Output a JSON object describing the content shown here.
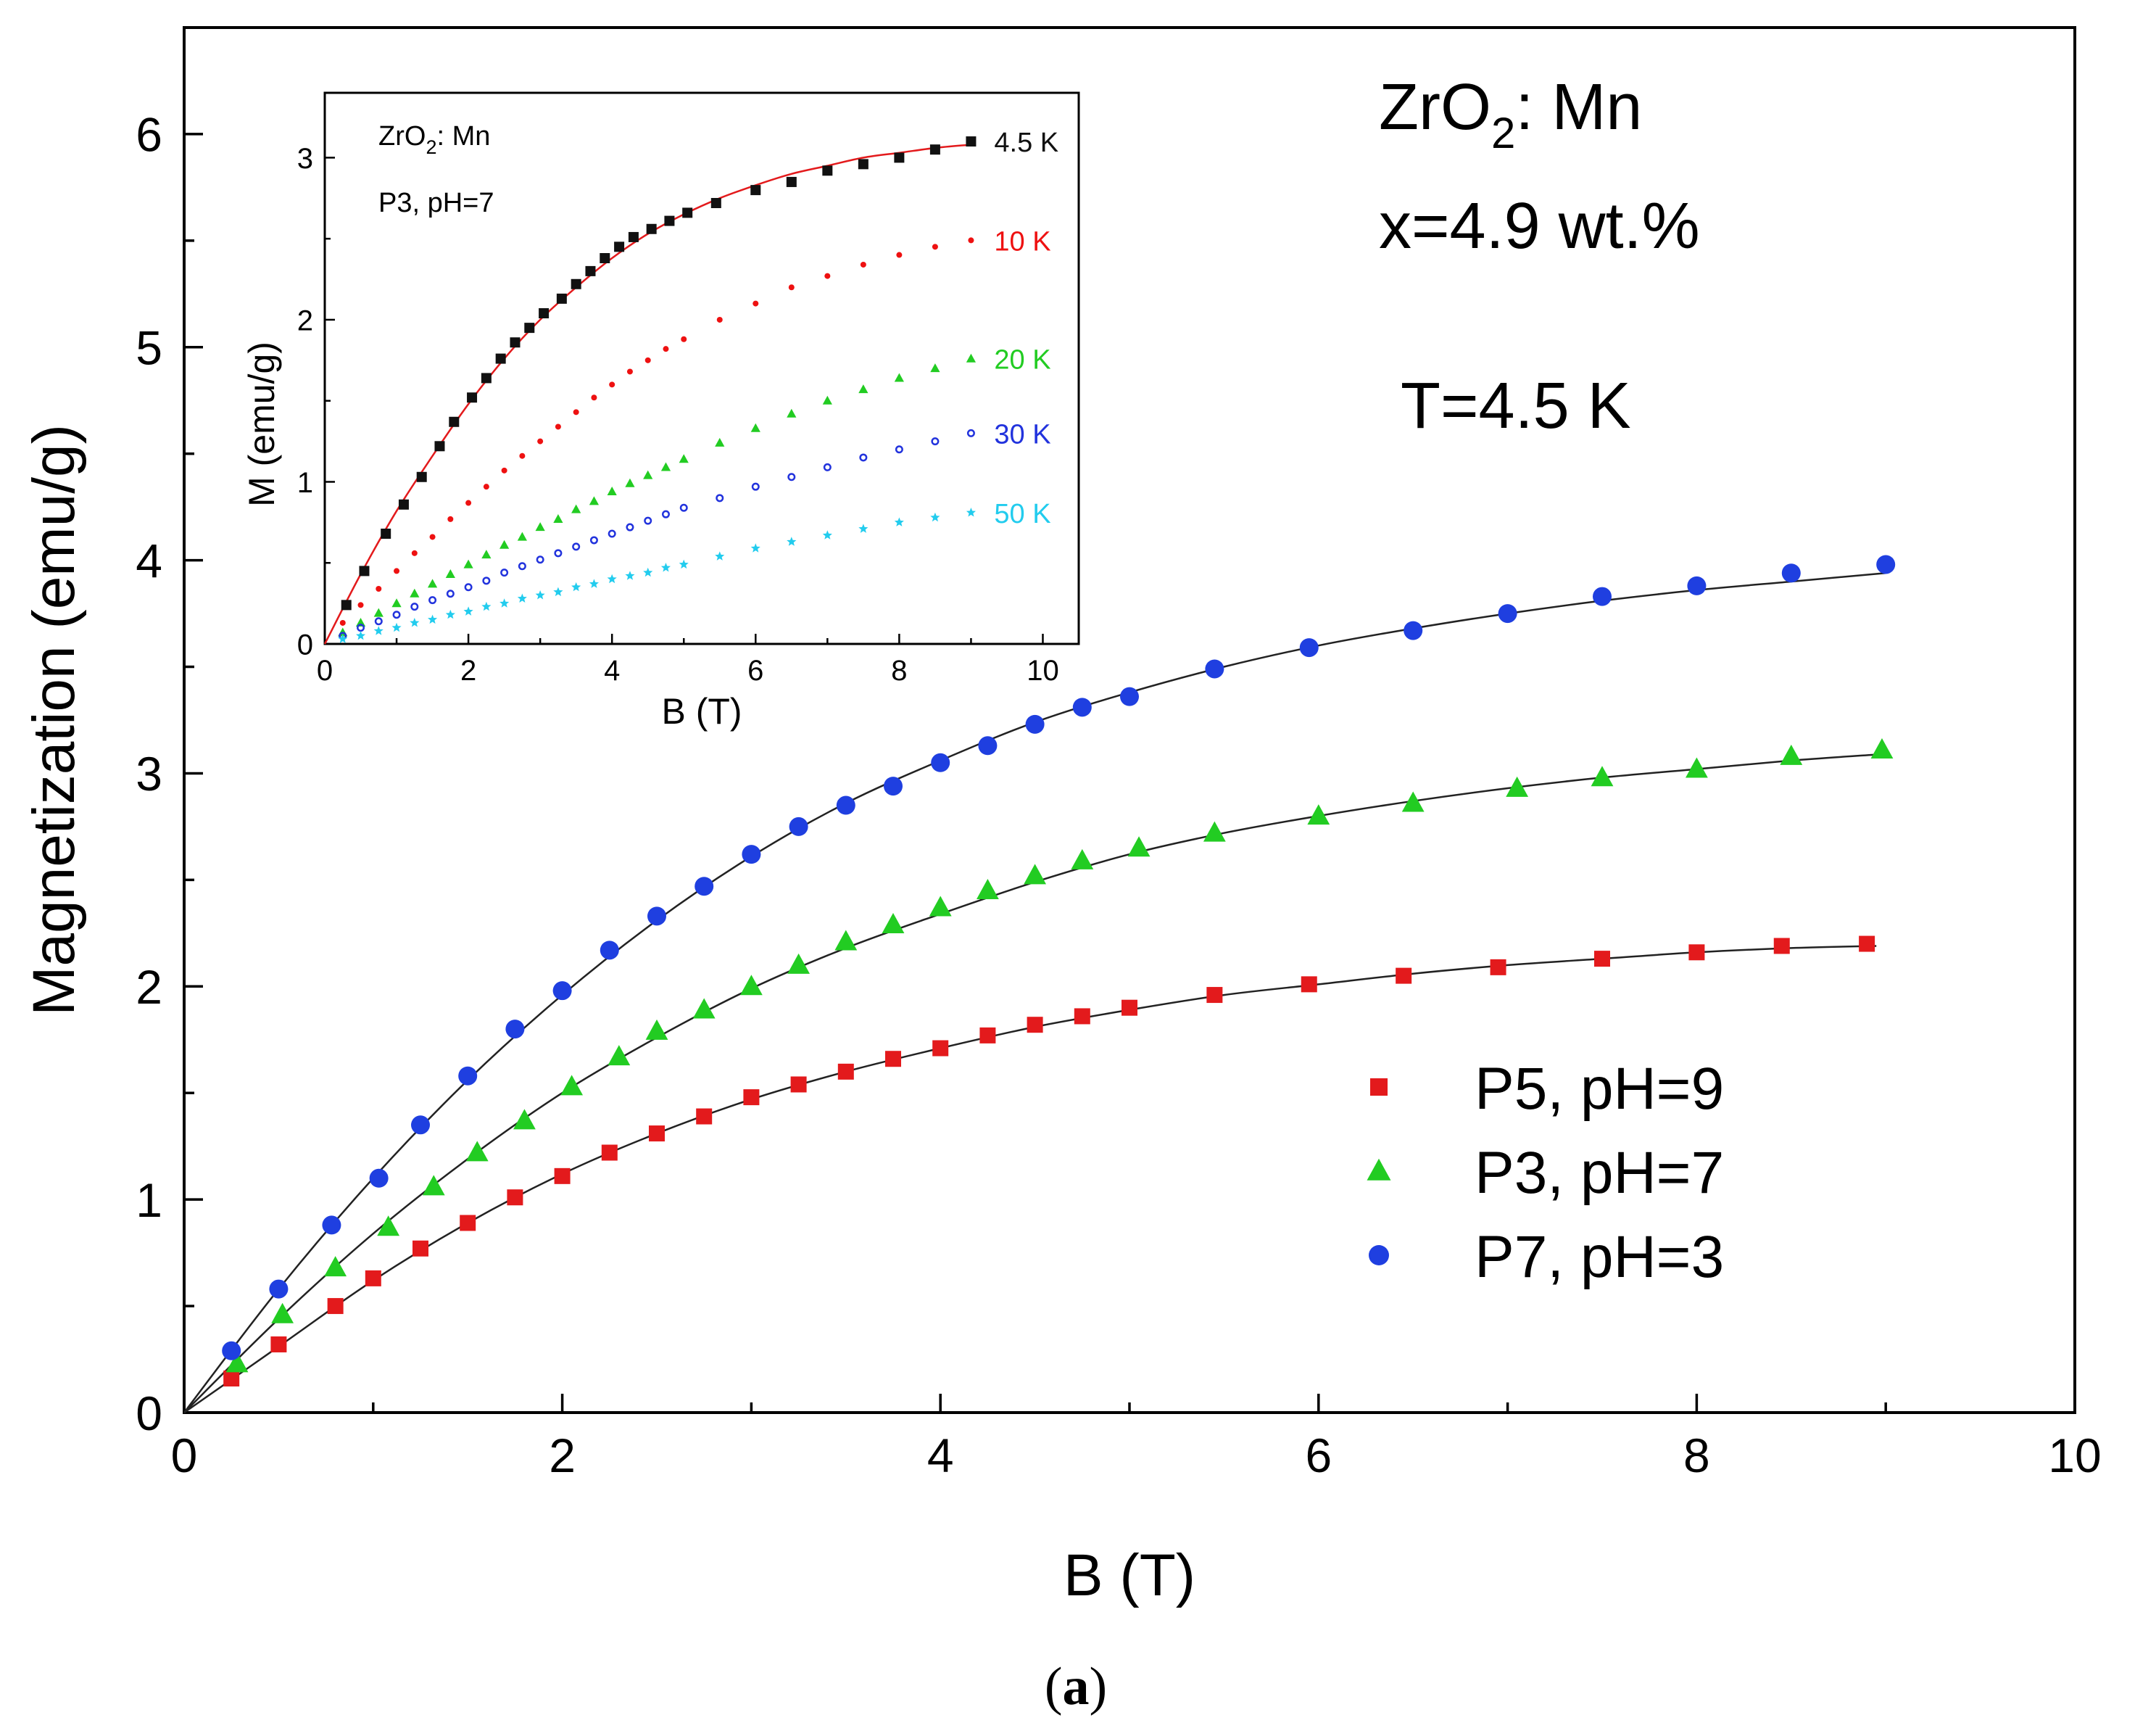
{
  "caption": {
    "open": "(",
    "letter": "a",
    "close": ")"
  },
  "chart_data": [
    {
      "type": "scatter",
      "xlabel": "B (T)",
      "ylabel": "Magnetization (emu/g)",
      "xlim": [
        0,
        10
      ],
      "ylim": [
        0,
        6.5
      ],
      "x_ticks": [
        0,
        2,
        4,
        6,
        8,
        10
      ],
      "y_ticks": [
        0,
        1,
        2,
        3,
        4,
        5,
        6
      ],
      "grid": false,
      "legend_position": "lower-right",
      "annotations": {
        "material": "ZrO",
        "material_sub": "2",
        "material_rest": ": Mn",
        "concentration": "x=4.9 wt.%",
        "temperature": "T=4.5 K"
      },
      "series": [
        {
          "name": "P5, pH=9",
          "color": "#e31a1c",
          "marker": "square",
          "x": [
            0.25,
            0.5,
            0.8,
            1.0,
            1.25,
            1.5,
            1.75,
            2.0,
            2.25,
            2.5,
            2.75,
            3.0,
            3.25,
            3.5,
            3.75,
            4.0,
            4.25,
            4.5,
            4.75,
            5.0,
            5.45,
            5.95,
            6.45,
            6.95,
            7.5,
            8.0,
            8.45,
            8.9
          ],
          "y": [
            0.16,
            0.32,
            0.5,
            0.63,
            0.77,
            0.89,
            1.01,
            1.11,
            1.22,
            1.31,
            1.39,
            1.48,
            1.54,
            1.6,
            1.66,
            1.71,
            1.77,
            1.82,
            1.86,
            1.9,
            1.96,
            2.01,
            2.05,
            2.09,
            2.13,
            2.16,
            2.19,
            2.2
          ],
          "fit": [
            [
              0,
              0
            ],
            [
              0.5,
              0.31
            ],
            [
              1.0,
              0.62
            ],
            [
              1.5,
              0.89
            ],
            [
              2.0,
              1.12
            ],
            [
              2.5,
              1.31
            ],
            [
              3.0,
              1.47
            ],
            [
              3.5,
              1.6
            ],
            [
              4.0,
              1.71
            ],
            [
              4.5,
              1.81
            ],
            [
              5.0,
              1.89
            ],
            [
              5.5,
              1.96
            ],
            [
              6.0,
              2.01
            ],
            [
              6.5,
              2.06
            ],
            [
              7.0,
              2.1
            ],
            [
              7.5,
              2.13
            ],
            [
              8.0,
              2.16
            ],
            [
              8.5,
              2.18
            ],
            [
              8.95,
              2.19
            ]
          ]
        },
        {
          "name": "P3, pH=7",
          "color": "#22cc22",
          "marker": "triangle",
          "x": [
            0.28,
            0.52,
            0.8,
            1.08,
            1.32,
            1.55,
            1.8,
            2.05,
            2.3,
            2.5,
            2.75,
            3.0,
            3.25,
            3.5,
            3.75,
            4.0,
            4.25,
            4.5,
            4.75,
            5.05,
            5.45,
            6.0,
            6.5,
            7.05,
            7.5,
            8.0,
            8.5,
            8.98
          ],
          "y": [
            0.23,
            0.46,
            0.68,
            0.87,
            1.06,
            1.22,
            1.37,
            1.53,
            1.67,
            1.79,
            1.89,
            2.0,
            2.1,
            2.21,
            2.29,
            2.37,
            2.45,
            2.52,
            2.59,
            2.65,
            2.72,
            2.8,
            2.86,
            2.93,
            2.98,
            3.02,
            3.08,
            3.11
          ],
          "fit": [
            [
              0,
              0
            ],
            [
              0.5,
              0.44
            ],
            [
              1.0,
              0.84
            ],
            [
              1.5,
              1.19
            ],
            [
              2.0,
              1.5
            ],
            [
              2.5,
              1.76
            ],
            [
              3.0,
              1.99
            ],
            [
              3.5,
              2.18
            ],
            [
              4.0,
              2.34
            ],
            [
              4.5,
              2.49
            ],
            [
              5.0,
              2.62
            ],
            [
              5.5,
              2.72
            ],
            [
              6.0,
              2.8
            ],
            [
              6.5,
              2.87
            ],
            [
              7.0,
              2.93
            ],
            [
              7.5,
              2.98
            ],
            [
              8.0,
              3.02
            ],
            [
              8.5,
              3.06
            ],
            [
              8.98,
              3.09
            ]
          ]
        },
        {
          "name": "P7, pH=3",
          "color": "#1f3fe0",
          "marker": "circle",
          "x": [
            0.25,
            0.5,
            0.78,
            1.03,
            1.25,
            1.5,
            1.75,
            2.0,
            2.25,
            2.5,
            2.75,
            3.0,
            3.25,
            3.5,
            3.75,
            4.0,
            4.25,
            4.5,
            4.75,
            5.0,
            5.45,
            5.95,
            6.5,
            7.0,
            7.5,
            8.0,
            8.5,
            9.0
          ],
          "y": [
            0.29,
            0.58,
            0.88,
            1.1,
            1.35,
            1.58,
            1.8,
            1.98,
            2.17,
            2.33,
            2.47,
            2.62,
            2.75,
            2.85,
            2.94,
            3.05,
            3.13,
            3.23,
            3.31,
            3.36,
            3.49,
            3.59,
            3.67,
            3.75,
            3.83,
            3.88,
            3.94,
            3.98
          ],
          "fit": [
            [
              0,
              0
            ],
            [
              0.5,
              0.58
            ],
            [
              1.0,
              1.1
            ],
            [
              1.5,
              1.56
            ],
            [
              2.0,
              1.96
            ],
            [
              2.5,
              2.31
            ],
            [
              3.0,
              2.61
            ],
            [
              3.5,
              2.86
            ],
            [
              4.0,
              3.06
            ],
            [
              4.5,
              3.24
            ],
            [
              5.0,
              3.38
            ],
            [
              5.5,
              3.5
            ],
            [
              6.0,
              3.6
            ],
            [
              6.5,
              3.68
            ],
            [
              7.0,
              3.75
            ],
            [
              7.5,
              3.81
            ],
            [
              8.0,
              3.86
            ],
            [
              8.5,
              3.9
            ],
            [
              9.0,
              3.94
            ]
          ]
        }
      ]
    },
    {
      "type": "scatter",
      "xlabel": "B (T)",
      "ylabel": "M (emu/g)",
      "xlim": [
        0,
        10.5
      ],
      "ylim": [
        0,
        3.4
      ],
      "x_ticks": [
        0,
        2,
        4,
        6,
        8,
        10
      ],
      "y_ticks": [
        0,
        1,
        2,
        3
      ],
      "grid": false,
      "annotations": {
        "material": "ZrO",
        "material_sub": "2",
        "material_rest": ": Mn",
        "sample": "P3, pH=7"
      },
      "series": [
        {
          "name": "4.5 K",
          "color": "#111111",
          "marker": "square",
          "x": [
            0.3,
            0.55,
            0.85,
            1.1,
            1.35,
            1.6,
            1.8,
            2.05,
            2.25,
            2.45,
            2.65,
            2.85,
            3.05,
            3.3,
            3.5,
            3.7,
            3.9,
            4.1,
            4.3,
            4.55,
            4.8,
            5.05,
            5.45,
            6.0,
            6.5,
            7.0,
            7.5,
            8.0,
            8.5,
            9.0
          ],
          "y": [
            0.24,
            0.45,
            0.68,
            0.86,
            1.03,
            1.22,
            1.37,
            1.52,
            1.64,
            1.76,
            1.86,
            1.95,
            2.04,
            2.13,
            2.22,
            2.3,
            2.38,
            2.45,
            2.51,
            2.56,
            2.61,
            2.66,
            2.72,
            2.8,
            2.85,
            2.92,
            2.96,
            3.0,
            3.05,
            3.1
          ],
          "fit": [
            [
              0,
              0
            ],
            [
              0.5,
              0.43
            ],
            [
              1.0,
              0.82
            ],
            [
              1.5,
              1.16
            ],
            [
              2.0,
              1.48
            ],
            [
              2.5,
              1.76
            ],
            [
              3.0,
              2.0
            ],
            [
              3.5,
              2.2
            ],
            [
              4.0,
              2.38
            ],
            [
              4.5,
              2.53
            ],
            [
              5.0,
              2.65
            ],
            [
              5.5,
              2.75
            ],
            [
              6.0,
              2.83
            ],
            [
              6.5,
              2.9
            ],
            [
              7.0,
              2.95
            ],
            [
              7.5,
              3.0
            ],
            [
              8.0,
              3.03
            ],
            [
              8.5,
              3.06
            ],
            [
              9.0,
              3.08
            ]
          ],
          "fit_color": "#e31a1c"
        },
        {
          "name": "10 K",
          "color": "#ee1111",
          "marker": "dot",
          "x": [
            0.25,
            0.5,
            0.75,
            1.0,
            1.25,
            1.5,
            1.75,
            2.0,
            2.25,
            2.5,
            2.75,
            3.0,
            3.25,
            3.5,
            3.75,
            4.0,
            4.25,
            4.5,
            4.75,
            5.0,
            5.5,
            6.0,
            6.5,
            7.0,
            7.5,
            8.0,
            8.5,
            9.0
          ],
          "y": [
            0.13,
            0.24,
            0.34,
            0.45,
            0.56,
            0.66,
            0.77,
            0.87,
            0.97,
            1.07,
            1.16,
            1.25,
            1.34,
            1.43,
            1.52,
            1.6,
            1.68,
            1.75,
            1.82,
            1.88,
            2.0,
            2.1,
            2.2,
            2.27,
            2.34,
            2.4,
            2.45,
            2.49
          ]
        },
        {
          "name": "20 K",
          "color": "#22cc22",
          "marker": "triangle",
          "x": [
            0.25,
            0.5,
            0.75,
            1.0,
            1.25,
            1.5,
            1.75,
            2.0,
            2.25,
            2.5,
            2.75,
            3.0,
            3.25,
            3.5,
            3.75,
            4.0,
            4.25,
            4.5,
            4.75,
            5.0,
            5.5,
            6.0,
            6.5,
            7.0,
            7.5,
            8.0,
            8.5,
            9.0
          ],
          "y": [
            0.07,
            0.13,
            0.19,
            0.25,
            0.31,
            0.37,
            0.43,
            0.49,
            0.55,
            0.61,
            0.66,
            0.72,
            0.77,
            0.83,
            0.88,
            0.94,
            0.99,
            1.04,
            1.09,
            1.14,
            1.24,
            1.33,
            1.42,
            1.5,
            1.57,
            1.64,
            1.7,
            1.76
          ]
        },
        {
          "name": "30 K",
          "color": "#2233dd",
          "marker": "ring",
          "x": [
            0.25,
            0.5,
            0.75,
            1.0,
            1.25,
            1.5,
            1.75,
            2.0,
            2.25,
            2.5,
            2.75,
            3.0,
            3.25,
            3.5,
            3.75,
            4.0,
            4.25,
            4.5,
            4.75,
            5.0,
            5.5,
            6.0,
            6.5,
            7.0,
            7.5,
            8.0,
            8.5,
            9.0
          ],
          "y": [
            0.05,
            0.1,
            0.14,
            0.18,
            0.23,
            0.27,
            0.31,
            0.35,
            0.39,
            0.44,
            0.48,
            0.52,
            0.56,
            0.6,
            0.64,
            0.68,
            0.72,
            0.76,
            0.8,
            0.84,
            0.9,
            0.97,
            1.03,
            1.09,
            1.15,
            1.2,
            1.25,
            1.3
          ]
        },
        {
          "name": "50 K",
          "color": "#22ccee",
          "marker": "star",
          "x": [
            0.25,
            0.5,
            0.75,
            1.0,
            1.25,
            1.5,
            1.75,
            2.0,
            2.25,
            2.5,
            2.75,
            3.0,
            3.25,
            3.5,
            3.75,
            4.0,
            4.25,
            4.5,
            4.75,
            5.0,
            5.5,
            6.0,
            6.5,
            7.0,
            7.5,
            8.0,
            8.5,
            9.0
          ],
          "y": [
            0.03,
            0.05,
            0.08,
            0.1,
            0.13,
            0.15,
            0.18,
            0.2,
            0.23,
            0.25,
            0.28,
            0.3,
            0.32,
            0.35,
            0.37,
            0.4,
            0.42,
            0.44,
            0.47,
            0.49,
            0.54,
            0.59,
            0.63,
            0.67,
            0.71,
            0.75,
            0.78,
            0.81
          ]
        }
      ]
    }
  ]
}
